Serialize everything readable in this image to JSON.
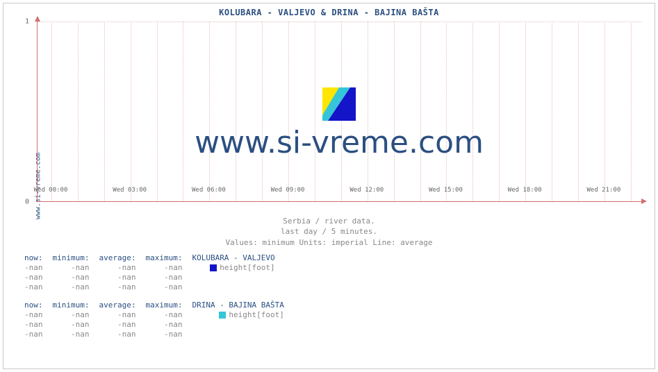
{
  "title": "KOLUBARA -  VALJEVO &  DRINA -  BAJINA BAŠTA",
  "ylabel": "www.si-vreme.com",
  "watermark": "www.si-vreme.com",
  "subtitle_lines": [
    "Serbia / river data.",
    "last day / 5 minutes.",
    "Values: minimum  Units: imperial  Line: average"
  ],
  "chart": {
    "type": "line",
    "background_color": "#ffffff",
    "grid_color": "#e8bcbc",
    "axis_color": "#d07070",
    "ylim": [
      0,
      1
    ],
    "yticks": [
      0,
      1
    ],
    "xticks": [
      "Wed 00:00",
      "Wed 03:00",
      "Wed 06:00",
      "Wed 09:00",
      "Wed 12:00",
      "Wed 15:00",
      "Wed 18:00",
      "Wed 21:00"
    ],
    "x_minor_per_major": 3,
    "series": []
  },
  "logo_colors": {
    "yellow": "#ffe500",
    "cyan": "#34c6d8",
    "blue": "#1414c8"
  },
  "columns": [
    "now:",
    "minimum:",
    "average:",
    "maximum:"
  ],
  "groups": [
    {
      "label": " KOLUBARA -  VALJEVO",
      "swatch_color": "#1414c8",
      "metric": "height[foot]",
      "rows": [
        [
          "-nan",
          "-nan",
          "-nan",
          "-nan"
        ],
        [
          "-nan",
          "-nan",
          "-nan",
          "-nan"
        ],
        [
          "-nan",
          "-nan",
          "-nan",
          "-nan"
        ]
      ]
    },
    {
      "label": " DRINA -  BAJINA BAŠTA",
      "swatch_color": "#34c6d8",
      "metric": "height[foot]",
      "rows": [
        [
          "-nan",
          "-nan",
          "-nan",
          "-nan"
        ],
        [
          "-nan",
          "-nan",
          "-nan",
          "-nan"
        ],
        [
          "-nan",
          "-nan",
          "-nan",
          "-nan"
        ]
      ]
    }
  ],
  "style": {
    "title_color": "#2b4f81",
    "text_muted": "#888888",
    "font_mono": "DejaVu Sans Mono, Courier New, monospace",
    "watermark_fontsize": 44
  }
}
